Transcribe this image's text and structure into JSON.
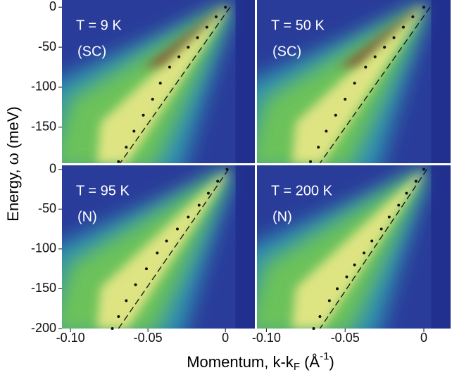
{
  "figure": {
    "ylabel": {
      "main": "Energy, ω (meV)"
    },
    "xlabel": {
      "main": "Momentum, k-k",
      "sub": "F",
      "mid": " (Å",
      "sup": "-1",
      "end": ")"
    }
  },
  "chart_data": [
    {
      "type": "line",
      "label": "T = 9 K",
      "phase": "(SC)",
      "xlim": [
        -0.1055,
        0.019
      ],
      "ylim": [
        -195,
        9
      ],
      "yticks": [
        0,
        -50,
        -100,
        -150
      ],
      "series": [
        {
          "color": "#111111",
          "marker": true,
          "x": [
            0,
            -0.006,
            -0.012,
            -0.018,
            -0.024,
            -0.03,
            -0.036,
            -0.042,
            -0.047,
            -0.053,
            -0.059,
            -0.064,
            -0.069
          ],
          "values": [
            0,
            -12,
            -25,
            -38,
            -50,
            -62,
            -75,
            -95,
            -115,
            -135,
            -155,
            -175,
            -193
          ]
        },
        {
          "color": "#111111",
          "marker": false,
          "x": [
            0.003,
            -0.068
          ],
          "values": [
            0,
            -195
          ]
        }
      ]
    },
    {
      "type": "line",
      "label": "T = 50 K",
      "phase": "(SC)",
      "xlim": [
        -0.106,
        0.017
      ],
      "ylim": [
        -195,
        9
      ],
      "series": [
        {
          "color": "#111111",
          "marker": true,
          "x": [
            0,
            -0.007,
            -0.013,
            -0.019,
            -0.025,
            -0.031,
            -0.037,
            -0.044,
            -0.05,
            -0.056,
            -0.062,
            -0.067,
            -0.072
          ],
          "values": [
            0,
            -12,
            -25,
            -38,
            -50,
            -62,
            -75,
            -95,
            -115,
            -135,
            -155,
            -175,
            -193
          ]
        },
        {
          "color": "#111111",
          "marker": false,
          "x": [
            0.004,
            -0.066
          ],
          "values": [
            0,
            -195
          ]
        }
      ]
    },
    {
      "type": "line",
      "label": "T = 95 K",
      "phase": "(N)",
      "xlim": [
        -0.1055,
        0.019
      ],
      "ylim": [
        -200,
        5
      ],
      "yticks": [
        0,
        -50,
        -100,
        -150,
        -200
      ],
      "xticks": [
        {
          "value": -0.1,
          "label": "-0.10"
        },
        -0.05,
        0
      ],
      "series": [
        {
          "color": "#111111",
          "marker": true,
          "x": [
            0.001,
            -0.005,
            -0.011,
            -0.017,
            -0.024,
            -0.031,
            -0.038,
            -0.044,
            -0.051,
            -0.058,
            -0.064,
            -0.069,
            -0.073
          ],
          "values": [
            0,
            -15,
            -30,
            -45,
            -60,
            -75,
            -90,
            -105,
            -125,
            -145,
            -165,
            -185,
            -200
          ]
        },
        {
          "color": "#111111",
          "marker": false,
          "x": [
            0.002,
            -0.069
          ],
          "values": [
            0,
            -200
          ]
        }
      ]
    },
    {
      "type": "line",
      "label": "T = 200 K",
      "phase": "(N)",
      "xlim": [
        -0.106,
        0.017
      ],
      "ylim": [
        -200,
        5
      ],
      "xticks": [
        {
          "value": -0.1,
          "label": "-0.10"
        },
        -0.05,
        0
      ],
      "series": [
        {
          "color": "#111111",
          "marker": true,
          "x": [
            0,
            -0.005,
            -0.011,
            -0.016,
            -0.022,
            -0.027,
            -0.033,
            -0.038,
            -0.044,
            -0.049,
            -0.055,
            -0.06,
            -0.066,
            -0.07
          ],
          "values": [
            0,
            -15,
            -30,
            -45,
            -60,
            -75,
            -90,
            -105,
            -120,
            -135,
            -150,
            -165,
            -185,
            -200
          ]
        },
        {
          "color": "#111111",
          "marker": false,
          "x": [
            0.002,
            -0.066
          ],
          "values": [
            0,
            -200
          ]
        }
      ]
    }
  ]
}
